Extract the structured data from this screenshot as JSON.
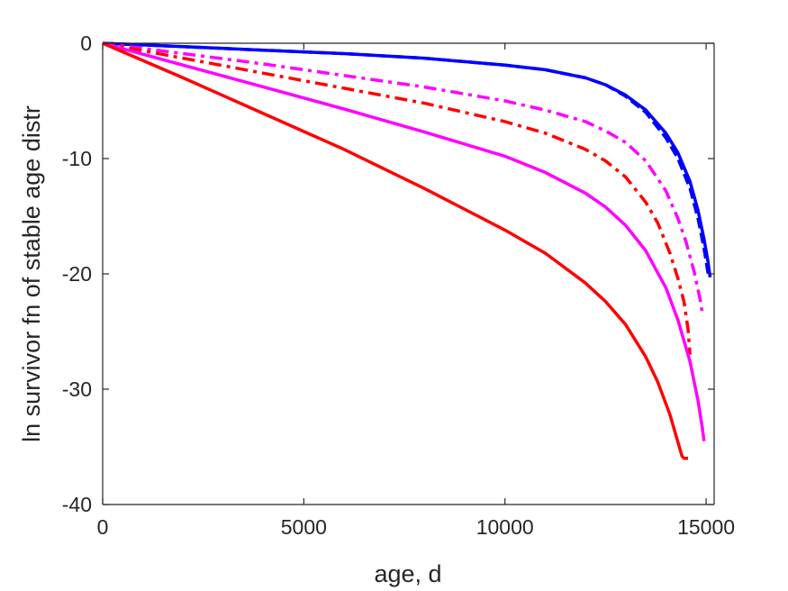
{
  "chart_data": {
    "type": "line",
    "title": "",
    "xlabel": "age, d",
    "ylabel": "ln survivor fn of stable age distr",
    "xlim": [
      0,
      15200
    ],
    "ylim": [
      -40,
      0
    ],
    "xticks": [
      0,
      5000,
      10000,
      15000
    ],
    "yticks": [
      0,
      -10,
      -20,
      -30,
      -40
    ],
    "xtick_labels": [
      "0",
      "5000",
      "10000",
      "15000"
    ],
    "ytick_labels": [
      "0",
      "-10",
      "-20",
      "-30",
      "-40"
    ],
    "grid": false,
    "legend": "none",
    "series": [
      {
        "color": "#0000ff",
        "style": "solid",
        "x": [
          0,
          2000,
          4000,
          6000,
          8000,
          10000,
          11000,
          12000,
          12500,
          13000,
          13500,
          14000,
          14300,
          14600,
          14800,
          14950,
          15050,
          15100
        ],
        "y": [
          0,
          -0.3,
          -0.6,
          -0.9,
          -1.3,
          -1.9,
          -2.3,
          -3.0,
          -3.6,
          -4.5,
          -5.8,
          -7.8,
          -9.5,
          -12,
          -14.5,
          -17,
          -19,
          -20.3
        ]
      },
      {
        "color": "#0000ff",
        "style": "dashed",
        "x": [
          0,
          2000,
          4000,
          6000,
          8000,
          10000,
          11000,
          12000,
          12500,
          13000,
          13500,
          14000,
          14300,
          14600,
          14800,
          14950,
          15050
        ],
        "y": [
          0,
          -0.3,
          -0.6,
          -0.9,
          -1.3,
          -1.9,
          -2.3,
          -3.0,
          -3.6,
          -4.6,
          -6.0,
          -8.2,
          -10,
          -12.6,
          -15.2,
          -17.8,
          -20.0
        ]
      },
      {
        "color": "#ff00ff",
        "style": "dashdot",
        "x": [
          0,
          2000,
          4000,
          6000,
          8000,
          10000,
          11000,
          12000,
          12500,
          13000,
          13500,
          14000,
          14300,
          14500,
          14700,
          14850,
          14900
        ],
        "y": [
          0,
          -0.9,
          -1.8,
          -2.8,
          -3.8,
          -5.0,
          -5.8,
          -6.8,
          -7.6,
          -8.6,
          -10.2,
          -12.8,
          -15.2,
          -17.2,
          -19.8,
          -22.2,
          -23.3
        ]
      },
      {
        "color": "#ff0000",
        "style": "dashdot",
        "x": [
          0,
          2000,
          4000,
          6000,
          8000,
          10000,
          11000,
          12000,
          12500,
          13000,
          13500,
          13800,
          14100,
          14300,
          14450,
          14550,
          14600
        ],
        "y": [
          0,
          -1.3,
          -2.6,
          -3.9,
          -5.2,
          -6.8,
          -7.8,
          -9.2,
          -10.2,
          -11.6,
          -13.8,
          -15.6,
          -18.2,
          -20.4,
          -22.4,
          -24.8,
          -27.0
        ]
      },
      {
        "color": "#ff00ff",
        "style": "solid",
        "x": [
          0,
          2000,
          4000,
          6000,
          8000,
          10000,
          11000,
          12000,
          12500,
          13000,
          13500,
          14000,
          14300,
          14600,
          14800,
          14900,
          14950
        ],
        "y": [
          0,
          -1.9,
          -3.8,
          -5.7,
          -7.7,
          -9.8,
          -11.2,
          -13.0,
          -14.2,
          -15.8,
          -18.0,
          -21.2,
          -24.0,
          -27.6,
          -31.0,
          -33.2,
          -34.5
        ]
      },
      {
        "color": "#ff0000",
        "style": "solid",
        "x": [
          0,
          2000,
          4000,
          6000,
          8000,
          10000,
          11000,
          12000,
          12500,
          13000,
          13500,
          13800,
          14100,
          14300,
          14400,
          14450,
          14550
        ],
        "y": [
          0,
          -3.0,
          -6.1,
          -9.2,
          -12.6,
          -16.2,
          -18.2,
          -20.8,
          -22.4,
          -24.4,
          -27.2,
          -29.4,
          -32.2,
          -34.6,
          -35.8,
          -36.0,
          -36.0
        ]
      }
    ]
  }
}
